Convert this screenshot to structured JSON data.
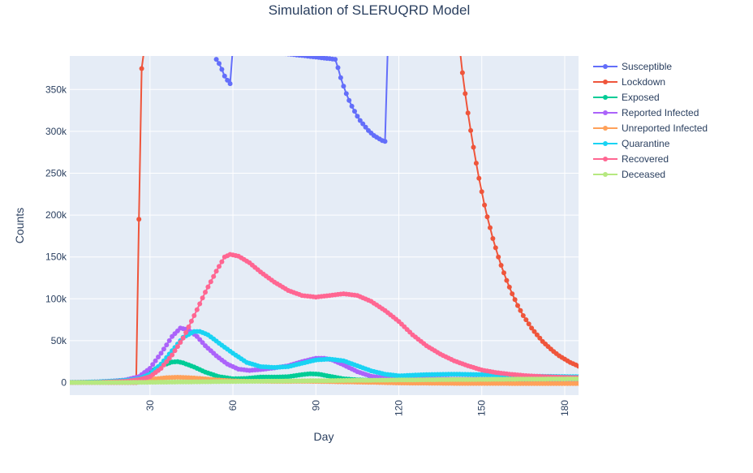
{
  "chart_data": {
    "type": "line",
    "title": "Simulation of SLERUQRD Model",
    "xlabel": "Day",
    "ylabel": "Counts",
    "xlim": [
      1,
      185
    ],
    "ylim": [
      -15000,
      390000
    ],
    "grid": true,
    "x_ticks": [
      {
        "value": 30,
        "label": "30"
      },
      {
        "value": 60,
        "label": "60"
      },
      {
        "value": 90,
        "label": "90"
      },
      {
        "value": 120,
        "label": "120"
      },
      {
        "value": 150,
        "label": "150"
      },
      {
        "value": 180,
        "label": "180"
      }
    ],
    "y_ticks": [
      {
        "value": 0,
        "label": "0"
      },
      {
        "value": 50000,
        "label": "50k"
      },
      {
        "value": 100000,
        "label": "100k"
      },
      {
        "value": 150000,
        "label": "150k"
      },
      {
        "value": 200000,
        "label": "200k"
      },
      {
        "value": 250000,
        "label": "250k"
      },
      {
        "value": 300000,
        "label": "300k"
      },
      {
        "value": 350000,
        "label": "350k"
      }
    ],
    "legend_position": "right",
    "series": [
      {
        "name": "Susceptible",
        "color": "#636efa",
        "points": [
          [
            54,
            386000
          ],
          [
            55,
            381000
          ],
          [
            56,
            374000
          ],
          [
            57,
            366000
          ],
          [
            58,
            361000
          ],
          [
            59,
            357000
          ],
          [
            60,
            400000
          ],
          [
            97,
            386000
          ],
          [
            98,
            376000
          ],
          [
            99,
            364000
          ],
          [
            100,
            354000
          ],
          [
            101,
            345000
          ],
          [
            102,
            337000
          ],
          [
            103,
            330000
          ],
          [
            104,
            324000
          ],
          [
            105,
            318000
          ],
          [
            106,
            313000
          ],
          [
            107,
            309000
          ],
          [
            108,
            305000
          ],
          [
            109,
            301000
          ],
          [
            110,
            298000
          ],
          [
            111,
            295000
          ],
          [
            112,
            293000
          ],
          [
            113,
            291000
          ],
          [
            114,
            289000
          ],
          [
            115,
            288000
          ],
          [
            116,
            400000
          ]
        ]
      },
      {
        "name": "Lockdown",
        "color": "#ef553b",
        "points": [
          [
            1,
            0
          ],
          [
            25,
            0
          ],
          [
            26,
            195000
          ],
          [
            27,
            375000
          ],
          [
            28,
            400000
          ],
          [
            142,
            400000
          ],
          [
            143,
            370000
          ],
          [
            144,
            345000
          ],
          [
            145,
            322000
          ],
          [
            146,
            301000
          ],
          [
            147,
            281000
          ],
          [
            148,
            262000
          ],
          [
            149,
            244000
          ],
          [
            150,
            228000
          ],
          [
            151,
            212000
          ],
          [
            152,
            198000
          ],
          [
            153,
            185000
          ],
          [
            154,
            172000
          ],
          [
            155,
            161000
          ],
          [
            156,
            150000
          ],
          [
            157,
            140000
          ],
          [
            158,
            131000
          ],
          [
            159,
            122000
          ],
          [
            160,
            114000
          ],
          [
            161,
            106000
          ],
          [
            162,
            99000
          ],
          [
            163,
            92000
          ],
          [
            164,
            86000
          ],
          [
            165,
            80000
          ],
          [
            166,
            75000
          ],
          [
            167,
            70000
          ],
          [
            168,
            65000
          ],
          [
            169,
            61000
          ],
          [
            170,
            57000
          ],
          [
            171,
            53000
          ],
          [
            172,
            49000
          ],
          [
            173,
            46000
          ],
          [
            174,
            43000
          ],
          [
            175,
            40000
          ],
          [
            176,
            37000
          ],
          [
            177,
            34500
          ],
          [
            178,
            32000
          ],
          [
            179,
            30000
          ],
          [
            180,
            28000
          ],
          [
            181,
            26000
          ],
          [
            182,
            24000
          ],
          [
            183,
            22500
          ],
          [
            184,
            21000
          ],
          [
            185,
            19500
          ]
        ]
      },
      {
        "name": "Exposed",
        "color": "#00cc96",
        "points": [
          [
            1,
            200
          ],
          [
            6,
            400
          ],
          [
            11,
            800
          ],
          [
            16,
            1500
          ],
          [
            21,
            3000
          ],
          [
            26,
            6500
          ],
          [
            30,
            13000
          ],
          [
            34,
            20000
          ],
          [
            38,
            24500
          ],
          [
            40,
            25000
          ],
          [
            42,
            23500
          ],
          [
            46,
            18500
          ],
          [
            50,
            12500
          ],
          [
            55,
            7000
          ],
          [
            60,
            4500
          ],
          [
            65,
            5000
          ],
          [
            70,
            6500
          ],
          [
            75,
            6500
          ],
          [
            80,
            7000
          ],
          [
            85,
            9500
          ],
          [
            88,
            10500
          ],
          [
            91,
            10000
          ],
          [
            95,
            7500
          ],
          [
            100,
            4500
          ],
          [
            105,
            3200
          ],
          [
            110,
            2800
          ],
          [
            115,
            2500
          ],
          [
            120,
            2300
          ],
          [
            130,
            2000
          ],
          [
            140,
            1800
          ],
          [
            150,
            1600
          ],
          [
            160,
            1500
          ],
          [
            170,
            1400
          ],
          [
            185,
            1300
          ]
        ]
      },
      {
        "name": "Reported Infected",
        "color": "#ab63fa",
        "points": [
          [
            1,
            100
          ],
          [
            6,
            300
          ],
          [
            11,
            800
          ],
          [
            16,
            1700
          ],
          [
            21,
            3000
          ],
          [
            26,
            7000
          ],
          [
            30,
            17000
          ],
          [
            34,
            35000
          ],
          [
            38,
            55000
          ],
          [
            41,
            65000
          ],
          [
            44,
            63000
          ],
          [
            47,
            55000
          ],
          [
            50,
            44000
          ],
          [
            54,
            32000
          ],
          [
            58,
            22000
          ],
          [
            62,
            16000
          ],
          [
            66,
            14500
          ],
          [
            70,
            15500
          ],
          [
            75,
            17500
          ],
          [
            80,
            20000
          ],
          [
            85,
            25000
          ],
          [
            90,
            29000
          ],
          [
            93,
            29000
          ],
          [
            96,
            27000
          ],
          [
            100,
            21000
          ],
          [
            105,
            13000
          ],
          [
            110,
            7500
          ],
          [
            115,
            5500
          ],
          [
            120,
            5000
          ],
          [
            130,
            4500
          ],
          [
            140,
            4200
          ],
          [
            150,
            4000
          ],
          [
            160,
            3800
          ],
          [
            170,
            3700
          ],
          [
            185,
            3500
          ]
        ]
      },
      {
        "name": "Unreported Infected",
        "color": "#ffa15a",
        "points": [
          [
            1,
            50
          ],
          [
            11,
            300
          ],
          [
            21,
            1000
          ],
          [
            26,
            2000
          ],
          [
            31,
            4000
          ],
          [
            36,
            5800
          ],
          [
            40,
            6300
          ],
          [
            44,
            5800
          ],
          [
            48,
            5000
          ],
          [
            52,
            3800
          ],
          [
            56,
            2700
          ],
          [
            60,
            2000
          ],
          [
            65,
            1600
          ],
          [
            70,
            1500
          ],
          [
            75,
            1400
          ],
          [
            80,
            1400
          ],
          [
            85,
            1500
          ],
          [
            90,
            1400
          ],
          [
            95,
            1100
          ],
          [
            100,
            800
          ],
          [
            110,
            300
          ],
          [
            120,
            -500
          ],
          [
            130,
            -800
          ],
          [
            140,
            -1000
          ],
          [
            150,
            -1000
          ],
          [
            160,
            -1100
          ],
          [
            170,
            -1100
          ],
          [
            185,
            -1200
          ]
        ]
      },
      {
        "name": "Quarantine",
        "color": "#19d3f3",
        "points": [
          [
            1,
            100
          ],
          [
            11,
            800
          ],
          [
            21,
            2500
          ],
          [
            26,
            4500
          ],
          [
            30,
            10000
          ],
          [
            34,
            22000
          ],
          [
            38,
            38000
          ],
          [
            42,
            54000
          ],
          [
            46,
            61000
          ],
          [
            48,
            61000
          ],
          [
            51,
            57000
          ],
          [
            55,
            47000
          ],
          [
            60,
            35000
          ],
          [
            65,
            24000
          ],
          [
            70,
            19000
          ],
          [
            75,
            18000
          ],
          [
            80,
            19000
          ],
          [
            85,
            23000
          ],
          [
            90,
            27000
          ],
          [
            95,
            28000
          ],
          [
            100,
            26000
          ],
          [
            105,
            20000
          ],
          [
            110,
            14000
          ],
          [
            115,
            10000
          ],
          [
            120,
            8000
          ],
          [
            130,
            9500
          ],
          [
            140,
            10000
          ],
          [
            150,
            9500
          ],
          [
            160,
            8500
          ],
          [
            170,
            7500
          ],
          [
            185,
            7000
          ]
        ]
      },
      {
        "name": "Recovered",
        "color": "#ff6692",
        "points": [
          [
            1,
            0
          ],
          [
            11,
            200
          ],
          [
            21,
            1500
          ],
          [
            26,
            3500
          ],
          [
            30,
            7000
          ],
          [
            34,
            17000
          ],
          [
            38,
            33000
          ],
          [
            42,
            53000
          ],
          [
            46,
            80000
          ],
          [
            50,
            108000
          ],
          [
            54,
            133000
          ],
          [
            57,
            150000
          ],
          [
            59,
            153000
          ],
          [
            62,
            151000
          ],
          [
            66,
            143000
          ],
          [
            70,
            132000
          ],
          [
            75,
            120000
          ],
          [
            80,
            110000
          ],
          [
            85,
            104000
          ],
          [
            90,
            102000
          ],
          [
            95,
            104000
          ],
          [
            100,
            106000
          ],
          [
            105,
            104000
          ],
          [
            110,
            97000
          ],
          [
            115,
            86000
          ],
          [
            120,
            73000
          ],
          [
            125,
            57000
          ],
          [
            130,
            44000
          ],
          [
            135,
            34000
          ],
          [
            140,
            26000
          ],
          [
            145,
            20000
          ],
          [
            150,
            15000
          ],
          [
            155,
            12000
          ],
          [
            160,
            10000
          ],
          [
            165,
            8500
          ],
          [
            170,
            7500
          ],
          [
            175,
            6800
          ],
          [
            180,
            6200
          ],
          [
            185,
            5800
          ]
        ]
      },
      {
        "name": "Deceased",
        "color": "#b6e880",
        "points": [
          [
            1,
            0
          ],
          [
            21,
            100
          ],
          [
            31,
            400
          ],
          [
            41,
            700
          ],
          [
            51,
            1000
          ],
          [
            61,
            1300
          ],
          [
            71,
            1600
          ],
          [
            81,
            1900
          ],
          [
            91,
            2200
          ],
          [
            101,
            2500
          ],
          [
            111,
            2800
          ],
          [
            121,
            3100
          ],
          [
            131,
            3400
          ],
          [
            141,
            3600
          ],
          [
            151,
            3800
          ],
          [
            161,
            4000
          ],
          [
            171,
            4200
          ],
          [
            185,
            4400
          ]
        ]
      }
    ]
  }
}
